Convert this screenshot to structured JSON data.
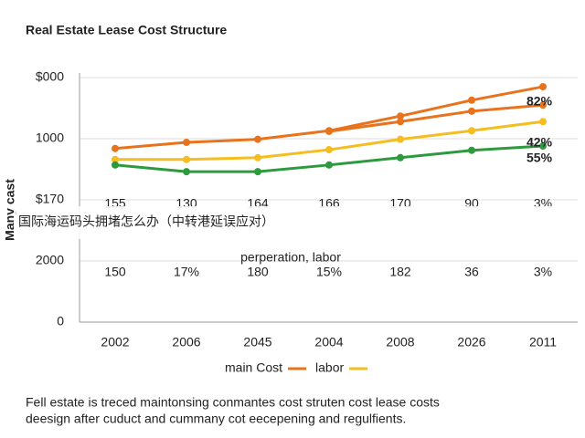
{
  "chart_data": {
    "type": "line",
    "title": "Real Estate Lease Cost Structure",
    "y_label": "Many cast",
    "categories": [
      "2002",
      "2006",
      "2045",
      "2004",
      "2008",
      "2026",
      "2011"
    ],
    "ylim": [
      0,
      4
    ],
    "yticks": [
      0,
      {
        "value": 1,
        "label": "2000"
      },
      {
        "value": 2,
        "label": "$170"
      },
      {
        "value": 3,
        "label": "1000"
      },
      {
        "value": 4,
        "label": "$000"
      }
    ],
    "grid": true,
    "series": [
      {
        "name": "main Cost",
        "color": "#e8731c",
        "values": [
          2.84,
          2.94,
          2.99,
          3.13,
          3.37,
          3.63,
          3.85
        ]
      },
      {
        "color": "#e8731c",
        "values": [
          null,
          null,
          null,
          3.12,
          3.28,
          3.45,
          3.55
        ]
      },
      {
        "name": "labor",
        "color": "#f5bd1f",
        "values": [
          2.66,
          2.66,
          2.69,
          2.82,
          2.99,
          3.13,
          3.28
        ]
      },
      {
        "color": "#2e9a3e",
        "values": [
          2.57,
          2.46,
          2.46,
          2.57,
          2.69,
          2.81,
          2.88
        ]
      }
    ],
    "annotations": [
      {
        "text": "82%",
        "color": "#e8731c"
      },
      {
        "text": "42%",
        "color": "#2e9a3e"
      },
      {
        "text": "55%",
        "color": "#2e9a3e"
      }
    ],
    "row1": [
      "155",
      "130",
      "164",
      "166",
      "170",
      "90",
      "3%"
    ],
    "middle_text": "perperation, labor",
    "row2": [
      "150",
      "17%",
      "180",
      "15%",
      "182",
      "36",
      "3%"
    ],
    "caption": [
      "Fell estate is treced maintonsing conmantes cost struten cost lease costs",
      "deesign after cuduct and cummany cot eecepening and regulfients."
    ],
    "watermark": "国际海运码头拥堵怎么办（中转港延误应对）"
  }
}
